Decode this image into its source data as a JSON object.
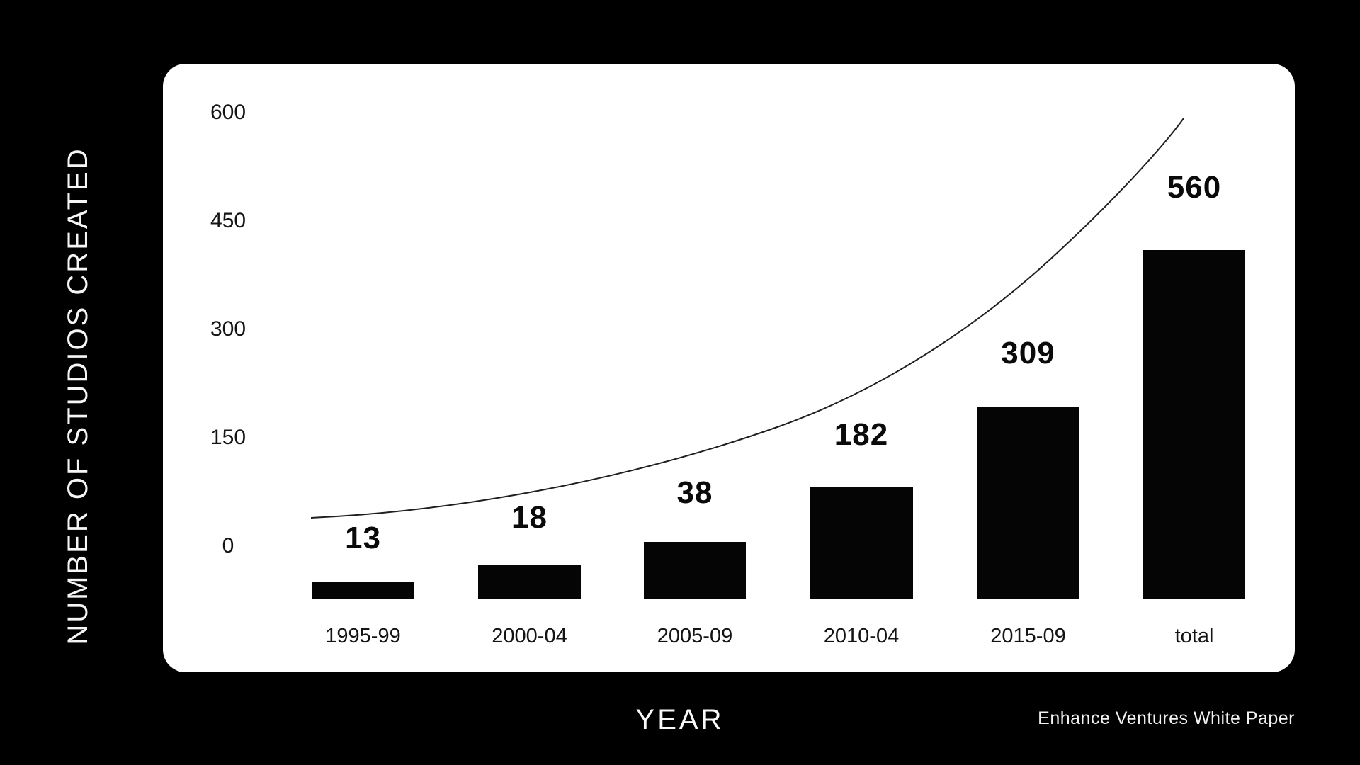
{
  "chart": {
    "y_axis_title": "NUMBER OF STUDIOS CREATED",
    "x_axis_title": "YEAR",
    "footer": "Enhance Ventures White Paper"
  },
  "chart_data": {
    "type": "bar",
    "title": "",
    "categories": [
      "1995-99",
      "2000-04",
      "2005-09",
      "2010-04",
      "2015-09",
      "total"
    ],
    "values": [
      13,
      18,
      38,
      182,
      309,
      560
    ],
    "value_labels": [
      "13",
      "18",
      "38",
      "182",
      "309",
      "560"
    ],
    "y_ticks": [
      600,
      450,
      300,
      150,
      0
    ],
    "ylim": [
      0,
      600
    ],
    "xlabel": "YEAR",
    "ylabel": "NUMBER OF STUDIOS CREATED",
    "grid": false,
    "legend": "none",
    "overlay": "exponential growth trend curve rising left-to-right across the plot",
    "bar_color": "#050505",
    "label_color": "#0a0a0a",
    "plot_background": "#ffffff",
    "page_background": "#000000",
    "source_note": "Enhance Ventures White Paper"
  }
}
